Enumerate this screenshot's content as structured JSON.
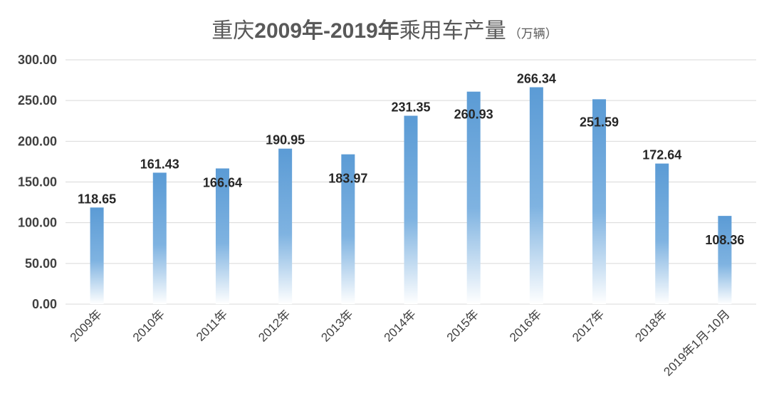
{
  "chart_data": {
    "type": "bar",
    "title": {
      "prefix": "重庆",
      "years": "2009年-2019年",
      "suffix": "乘用车产量",
      "unit": "（万辆）"
    },
    "xlabel": "",
    "ylabel": "",
    "ylim": [
      0,
      300
    ],
    "yticks": [
      "0.00",
      "50.00",
      "100.00",
      "150.00",
      "200.00",
      "250.00",
      "300.00"
    ],
    "grid": true,
    "legend": "none",
    "bar_color": "#5b9bd5",
    "categories": [
      "2009年",
      "2010年",
      "2011年",
      "2012年",
      "2013年",
      "2014年",
      "2015年",
      "2016年",
      "2017年",
      "2018年",
      "2019年1月-10月"
    ],
    "values": [
      118.65,
      161.43,
      166.64,
      190.95,
      183.97,
      231.35,
      260.93,
      266.34,
      251.59,
      172.64,
      108.36
    ],
    "value_labels": [
      "118.65",
      "161.43",
      "166.64",
      "190.95",
      "183.97",
      "231.35",
      "260.93",
      "266.34",
      "251.59",
      "172.64",
      "108.36"
    ]
  }
}
